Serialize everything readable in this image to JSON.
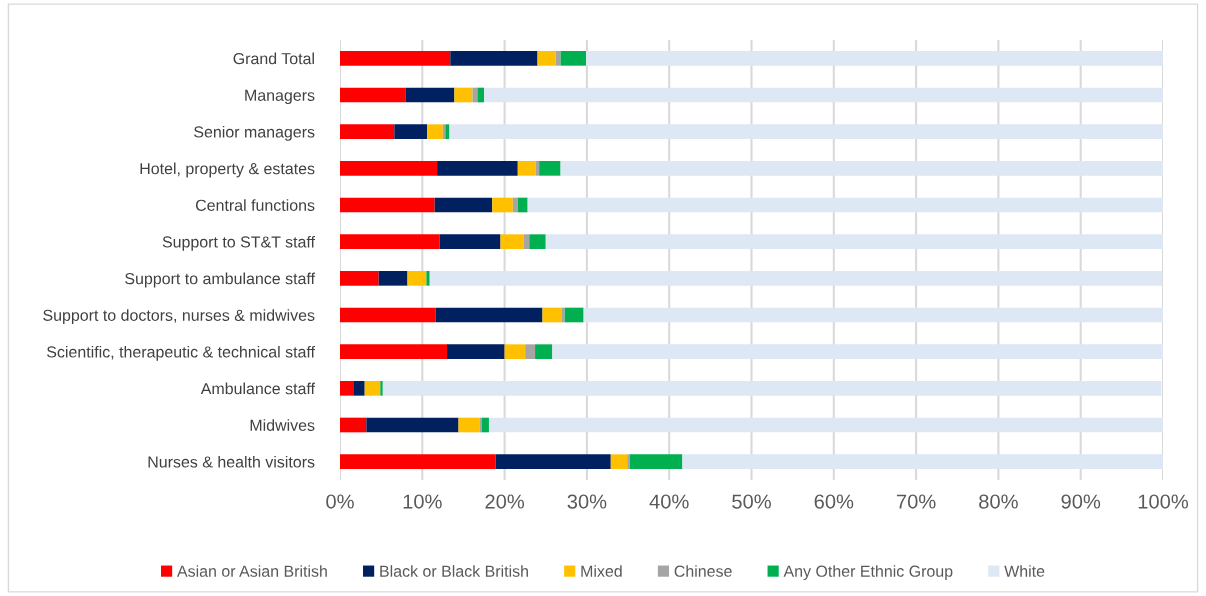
{
  "chart_data": {
    "type": "bar",
    "orientation": "horizontal",
    "stacked": true,
    "categories": [
      "Grand Total",
      "Managers",
      "Senior managers",
      "Hotel, property & estates",
      "Central functions",
      "Support to ST&T staff",
      "Support to ambulance staff",
      "Support to doctors, nurses & midwives",
      "Scientific, therapeutic & technical staff",
      "Ambulance staff",
      "Midwives",
      "Nurses & health visitors"
    ],
    "series": [
      {
        "name": "Asian or Asian British",
        "color": "#ff0000",
        "values": [
          13.4,
          8.0,
          6.6,
          11.8,
          11.5,
          12.1,
          4.7,
          11.6,
          13.0,
          1.7,
          3.2,
          18.9
        ]
      },
      {
        "name": "Black or Black British",
        "color": "#002060",
        "values": [
          10.6,
          5.9,
          4.0,
          9.8,
          7.0,
          7.4,
          3.5,
          13.0,
          7.0,
          1.3,
          11.2,
          14.0
        ]
      },
      {
        "name": "Mixed",
        "color": "#ffc000",
        "values": [
          2.2,
          2.2,
          1.9,
          2.2,
          2.5,
          2.8,
          2.3,
          2.3,
          2.5,
          1.9,
          2.6,
          2.0
        ]
      },
      {
        "name": "Chinese",
        "color": "#a5a5a5",
        "values": [
          0.6,
          0.6,
          0.3,
          0.4,
          0.6,
          0.7,
          null,
          0.4,
          1.2,
          null,
          0.2,
          0.3
        ]
      },
      {
        "name": "Any Other Ethnic Group",
        "color": "#00b050",
        "values": [
          3.1,
          0.8,
          0.5,
          2.6,
          1.2,
          2.0,
          0.4,
          2.3,
          2.1,
          0.3,
          0.9,
          6.4
        ]
      },
      {
        "name": "White",
        "color": "#dde8f4",
        "values": [
          70.1,
          82.5,
          86.7,
          73.2,
          77.2,
          75.0,
          89.0,
          70.4,
          74.2,
          94.6,
          81.9,
          58.4
        ]
      }
    ],
    "xlim": [
      0,
      100
    ],
    "xticks": [
      {
        "value": 0,
        "label": "0%"
      },
      {
        "value": 10,
        "label": "10%"
      },
      {
        "value": 20,
        "label": "20%"
      },
      {
        "value": 30,
        "label": "30%"
      },
      {
        "value": 40,
        "label": "40%"
      },
      {
        "value": 50,
        "label": "50%"
      },
      {
        "value": 60,
        "label": "60%"
      },
      {
        "value": 70,
        "label": "70%"
      },
      {
        "value": 80,
        "label": "80%"
      },
      {
        "value": 90,
        "label": "90%"
      },
      {
        "value": 100,
        "label": "100%"
      }
    ],
    "grid": "x",
    "legend": "bottom"
  }
}
